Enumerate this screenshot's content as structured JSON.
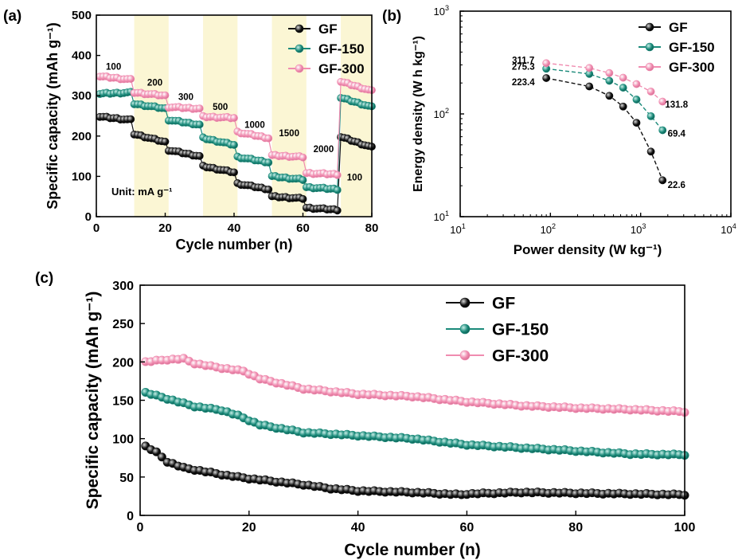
{
  "chart_data": [
    {
      "panel": "(a)",
      "type": "scatter",
      "xlabel": "Cycle number (n)",
      "ylabel": "Specific capacity (mAh g⁻¹)",
      "xlim": [
        0,
        80
      ],
      "ylim": [
        0,
        500
      ],
      "xticks": [
        0,
        20,
        40,
        60,
        80
      ],
      "yticks": [
        0,
        100,
        200,
        300,
        400,
        500
      ],
      "unit_note": "Unit:  mA g⁻¹",
      "rate_labels": [
        {
          "text": "100",
          "x": 5,
          "y": 365
        },
        {
          "text": "200",
          "x": 17,
          "y": 325
        },
        {
          "text": "300",
          "x": 26,
          "y": 290
        },
        {
          "text": "500",
          "x": 36,
          "y": 265
        },
        {
          "text": "1000",
          "x": 46,
          "y": 220
        },
        {
          "text": "1500",
          "x": 56,
          "y": 200
        },
        {
          "text": "2000",
          "x": 66,
          "y": 160
        },
        {
          "text": "100",
          "x": 75,
          "y": 90
        }
      ],
      "highlight_bands": [
        [
          11,
          21
        ],
        [
          31,
          41
        ],
        [
          51,
          61
        ],
        [
          71,
          80
        ]
      ],
      "legend_position": "top-right",
      "series": [
        {
          "name": "GF",
          "color": "#111111",
          "steps": [
            {
              "from": 1,
              "to": 10,
              "start": 248,
              "end": 240
            },
            {
              "from": 11,
              "to": 20,
              "start": 205,
              "end": 185
            },
            {
              "from": 21,
              "to": 30,
              "start": 165,
              "end": 150
            },
            {
              "from": 31,
              "to": 40,
              "start": 125,
              "end": 110
            },
            {
              "from": 41,
              "to": 50,
              "start": 82,
              "end": 68
            },
            {
              "from": 51,
              "to": 60,
              "start": 50,
              "end": 45
            },
            {
              "from": 61,
              "to": 70,
              "start": 22,
              "end": 17
            },
            {
              "from": 71,
              "to": 80,
              "start": 198,
              "end": 172
            }
          ]
        },
        {
          "name": "GF-150",
          "color": "#1b8a7a",
          "steps": [
            {
              "from": 1,
              "to": 10,
              "start": 305,
              "end": 308
            },
            {
              "from": 11,
              "to": 20,
              "start": 280,
              "end": 268
            },
            {
              "from": 21,
              "to": 30,
              "start": 240,
              "end": 228
            },
            {
              "from": 31,
              "to": 40,
              "start": 195,
              "end": 178
            },
            {
              "from": 41,
              "to": 50,
              "start": 148,
              "end": 135
            },
            {
              "from": 51,
              "to": 60,
              "start": 100,
              "end": 92
            },
            {
              "from": 61,
              "to": 70,
              "start": 73,
              "end": 68
            },
            {
              "from": 71,
              "to": 80,
              "start": 295,
              "end": 272
            }
          ]
        },
        {
          "name": "GF-300",
          "color": "#f08cb0",
          "steps": [
            {
              "from": 1,
              "to": 10,
              "start": 348,
              "end": 340
            },
            {
              "from": 11,
              "to": 20,
              "start": 308,
              "end": 300
            },
            {
              "from": 21,
              "to": 30,
              "start": 272,
              "end": 268
            },
            {
              "from": 31,
              "to": 40,
              "start": 248,
              "end": 245
            },
            {
              "from": 41,
              "to": 50,
              "start": 210,
              "end": 195
            },
            {
              "from": 51,
              "to": 60,
              "start": 152,
              "end": 148
            },
            {
              "from": 61,
              "to": 70,
              "start": 108,
              "end": 105
            },
            {
              "from": 71,
              "to": 80,
              "start": 335,
              "end": 312
            }
          ]
        }
      ]
    },
    {
      "panel": "(b)",
      "type": "line",
      "xlabel": "Power density (W kg⁻¹)",
      "ylabel": "Energy density (W h kg⁻¹)",
      "xscale": "log",
      "yscale": "log",
      "xlim": [
        10,
        10000
      ],
      "ylim": [
        10,
        1000
      ],
      "xticks": [
        {
          "value": 10,
          "base": "10",
          "exp": "1"
        },
        {
          "value": 100,
          "base": "10",
          "exp": "2"
        },
        {
          "value": 1000,
          "base": "10",
          "exp": "3"
        },
        {
          "value": 10000,
          "base": "10",
          "exp": "4"
        }
      ],
      "yticks": [
        {
          "value": 10,
          "base": "10",
          "exp": "1"
        },
        {
          "value": 100,
          "base": "10",
          "exp": "2"
        },
        {
          "value": 1000,
          "base": "10",
          "exp": "3"
        }
      ],
      "legend_position": "top-right",
      "series": [
        {
          "name": "GF",
          "color": "#111111",
          "x": [
            90,
            270,
            450,
            640,
            900,
            1300,
            1750
          ],
          "y": [
            223.4,
            185,
            150,
            118,
            82,
            43,
            22.6
          ]
        },
        {
          "name": "GF-150",
          "color": "#1b8a7a",
          "x": [
            90,
            270,
            450,
            640,
            900,
            1300,
            1750
          ],
          "y": [
            275.3,
            245,
            210,
            180,
            138,
            95,
            69.4
          ]
        },
        {
          "name": "GF-300",
          "color": "#f08cb0",
          "x": [
            90,
            270,
            450,
            640,
            900,
            1300,
            1750
          ],
          "y": [
            311.7,
            280,
            250,
            225,
            195,
            165,
            131.8
          ]
        }
      ],
      "annotations": [
        {
          "text": "311.7",
          "x": 50,
          "y": 312
        },
        {
          "text": "275.3",
          "x": 50,
          "y": 270
        },
        {
          "text": "223.4",
          "x": 50,
          "y": 190
        },
        {
          "text": "131.8",
          "x": 2500,
          "y": 115
        },
        {
          "text": "69.4",
          "x": 2500,
          "y": 60
        },
        {
          "text": "22.6",
          "x": 2500,
          "y": 19
        }
      ]
    },
    {
      "panel": "(c)",
      "type": "scatter",
      "xlabel": "Cycle number (n)",
      "ylabel": "Specific capacity (mAh g⁻¹)",
      "xlim": [
        0,
        100
      ],
      "ylim": [
        0,
        300
      ],
      "xticks": [
        0,
        20,
        40,
        60,
        80,
        100
      ],
      "yticks": [
        0,
        50,
        100,
        150,
        200,
        250,
        300
      ],
      "legend_position": "top-center",
      "series": [
        {
          "name": "GF",
          "color": "#111111",
          "x": [
            1,
            3,
            5,
            8,
            12,
            16,
            20,
            25,
            30,
            35,
            40,
            50,
            59,
            60,
            70,
            80,
            90,
            100
          ],
          "y": [
            90,
            82,
            70,
            62,
            57,
            52,
            48,
            44,
            40,
            35,
            32,
            30,
            27,
            28,
            30,
            29,
            28,
            27
          ]
        },
        {
          "name": "GF-150",
          "color": "#1b8a7a",
          "x": [
            1,
            5,
            10,
            15,
            18,
            22,
            30,
            40,
            50,
            60,
            70,
            80,
            90,
            100
          ],
          "y": [
            160,
            152,
            142,
            137,
            130,
            118,
            108,
            104,
            100,
            92,
            88,
            84,
            80,
            79
          ]
        },
        {
          "name": "GF-300",
          "color": "#f08cb0",
          "x": [
            1,
            5,
            8,
            10,
            15,
            19,
            22,
            30,
            40,
            50,
            60,
            70,
            80,
            90,
            100
          ],
          "y": [
            200,
            203,
            204,
            198,
            192,
            188,
            178,
            165,
            158,
            155,
            148,
            143,
            140,
            138,
            135
          ]
        }
      ]
    }
  ]
}
